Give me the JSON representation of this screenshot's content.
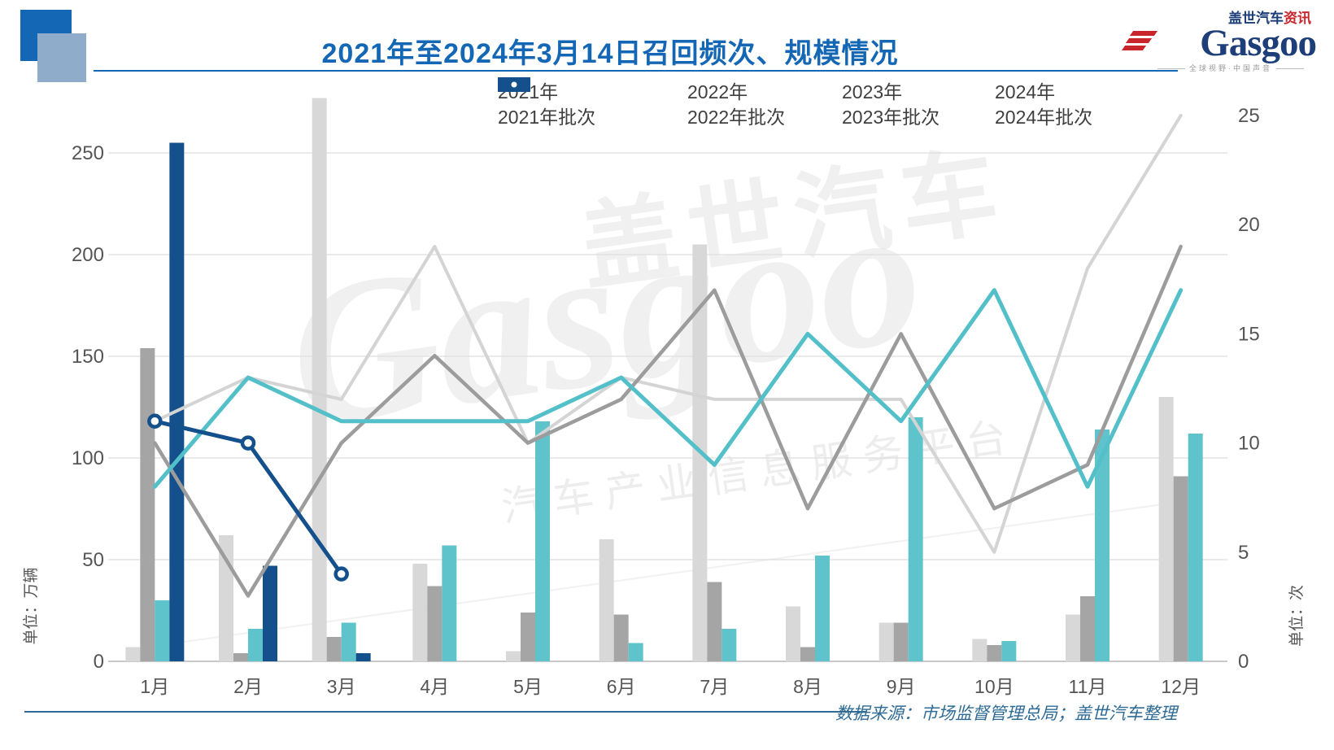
{
  "header": {
    "title": "2021年至2024年3月14日召回频次、规模情况",
    "logo": {
      "brand": "Gasgoo",
      "name_cn": "盖世汽车",
      "suffix_cn": "资讯",
      "tagline": "全球视野·中国声音"
    }
  },
  "source_note": "数据来源：市场监督管理总局；盖世汽车整理",
  "watermark": {
    "line1": "盖世汽车",
    "line2": "Gasgoo",
    "line3": "汽车产业信息服务平台"
  },
  "colors": {
    "title_blue": "#1467b4",
    "axis_text": "#555555",
    "grid": "#dedede",
    "baseline": "#c9c9c9",
    "source_text": "#2e6b95",
    "bar_2021": "#d8d8d8",
    "bar_2022": "#a5a5a5",
    "bar_2023": "#5ec3cb",
    "bar_2024": "#14508c"
  },
  "chart_data": {
    "type": "bar+line",
    "title": "2021年至2024年3月14日召回频次、规模情况",
    "categories": [
      "1月",
      "2月",
      "3月",
      "4月",
      "5月",
      "6月",
      "7月",
      "8月",
      "9月",
      "10月",
      "11月",
      "12月"
    ],
    "left_axis": {
      "label": "单位：万辆",
      "ticks": [
        0,
        50,
        100,
        150,
        200,
        250
      ],
      "range": [
        0,
        250
      ],
      "applies_to": "bars"
    },
    "right_axis": {
      "label": "单位：次",
      "ticks": [
        0,
        5,
        10,
        15,
        20,
        25
      ],
      "range": [
        0,
        25
      ],
      "applies_to": "lines"
    },
    "grid": "horizontal",
    "legend_position": "top",
    "bar_series": [
      {
        "name": "2021年",
        "color": "#d8d8d8",
        "values": [
          7,
          62,
          277,
          48,
          5,
          60,
          205,
          27,
          19,
          11,
          23,
          130
        ]
      },
      {
        "name": "2022年",
        "color": "#a5a5a5",
        "values": [
          154,
          4,
          12,
          37,
          24,
          23,
          39,
          7,
          19,
          8,
          32,
          91
        ]
      },
      {
        "name": "2023年",
        "color": "#5ec3cb",
        "values": [
          30,
          16,
          19,
          57,
          118,
          9,
          16,
          52,
          120,
          10,
          114,
          112
        ]
      },
      {
        "name": "2024年",
        "color": "#14508c",
        "values": [
          255,
          47,
          4,
          null,
          null,
          null,
          null,
          null,
          null,
          null,
          null,
          null
        ]
      }
    ],
    "line_series": [
      {
        "name": "2021年批次",
        "color": "#d4d4d4",
        "width": 4,
        "marker": false,
        "values": [
          11,
          13,
          12,
          19,
          10,
          13,
          12,
          12,
          12,
          5,
          18,
          25
        ]
      },
      {
        "name": "2022年批次",
        "color": "#9c9c9c",
        "width": 4.5,
        "marker": false,
        "values": [
          10,
          3,
          10,
          14,
          10,
          12,
          17,
          7,
          15,
          7,
          9,
          19
        ]
      },
      {
        "name": "2023年批次",
        "color": "#53bfc9",
        "width": 5,
        "marker": false,
        "values": [
          8,
          13,
          11,
          11,
          11,
          13,
          9,
          15,
          11,
          17,
          8,
          17
        ]
      },
      {
        "name": "2024年批次",
        "color": "#14508c",
        "width": 5,
        "marker": true,
        "values": [
          11,
          10,
          4,
          null,
          null,
          null,
          null,
          null,
          null,
          null,
          null,
          null
        ]
      }
    ]
  }
}
